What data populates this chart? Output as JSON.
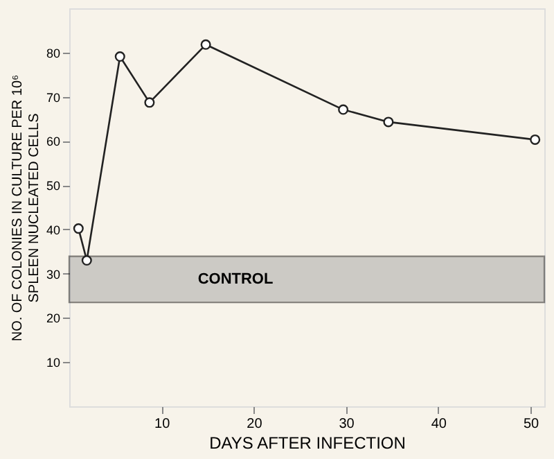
{
  "chart_data": {
    "type": "line",
    "xlabel": "DAYS AFTER INFECTION",
    "ylabel": [
      "NO. OF COLONIES IN CULTURE PER 10⁶",
      "SPLEEN NUCLEATED CELLS"
    ],
    "x": [
      1.0,
      1.9,
      5.5,
      8.7,
      14.8,
      29.7,
      34.6,
      50.5
    ],
    "series": [
      {
        "color": "#222222",
        "values": [
          40.2,
          33,
          79.1,
          68.7,
          81.8,
          67.1,
          64.3,
          60.3
        ]
      }
    ],
    "xlim": [
      0,
      51.5
    ],
    "xticks": [
      10,
      20,
      30,
      40,
      50
    ],
    "ylim": [
      0,
      90
    ],
    "yticks": [
      10,
      20,
      30,
      40,
      50,
      60,
      70,
      80
    ],
    "bands": [
      {
        "axis": "y",
        "from": 23.5,
        "to": 33.9,
        "label": "CONTROL",
        "color": "#9a9a9a"
      }
    ],
    "grid": false,
    "marker": "circle",
    "line_style": "solid"
  }
}
